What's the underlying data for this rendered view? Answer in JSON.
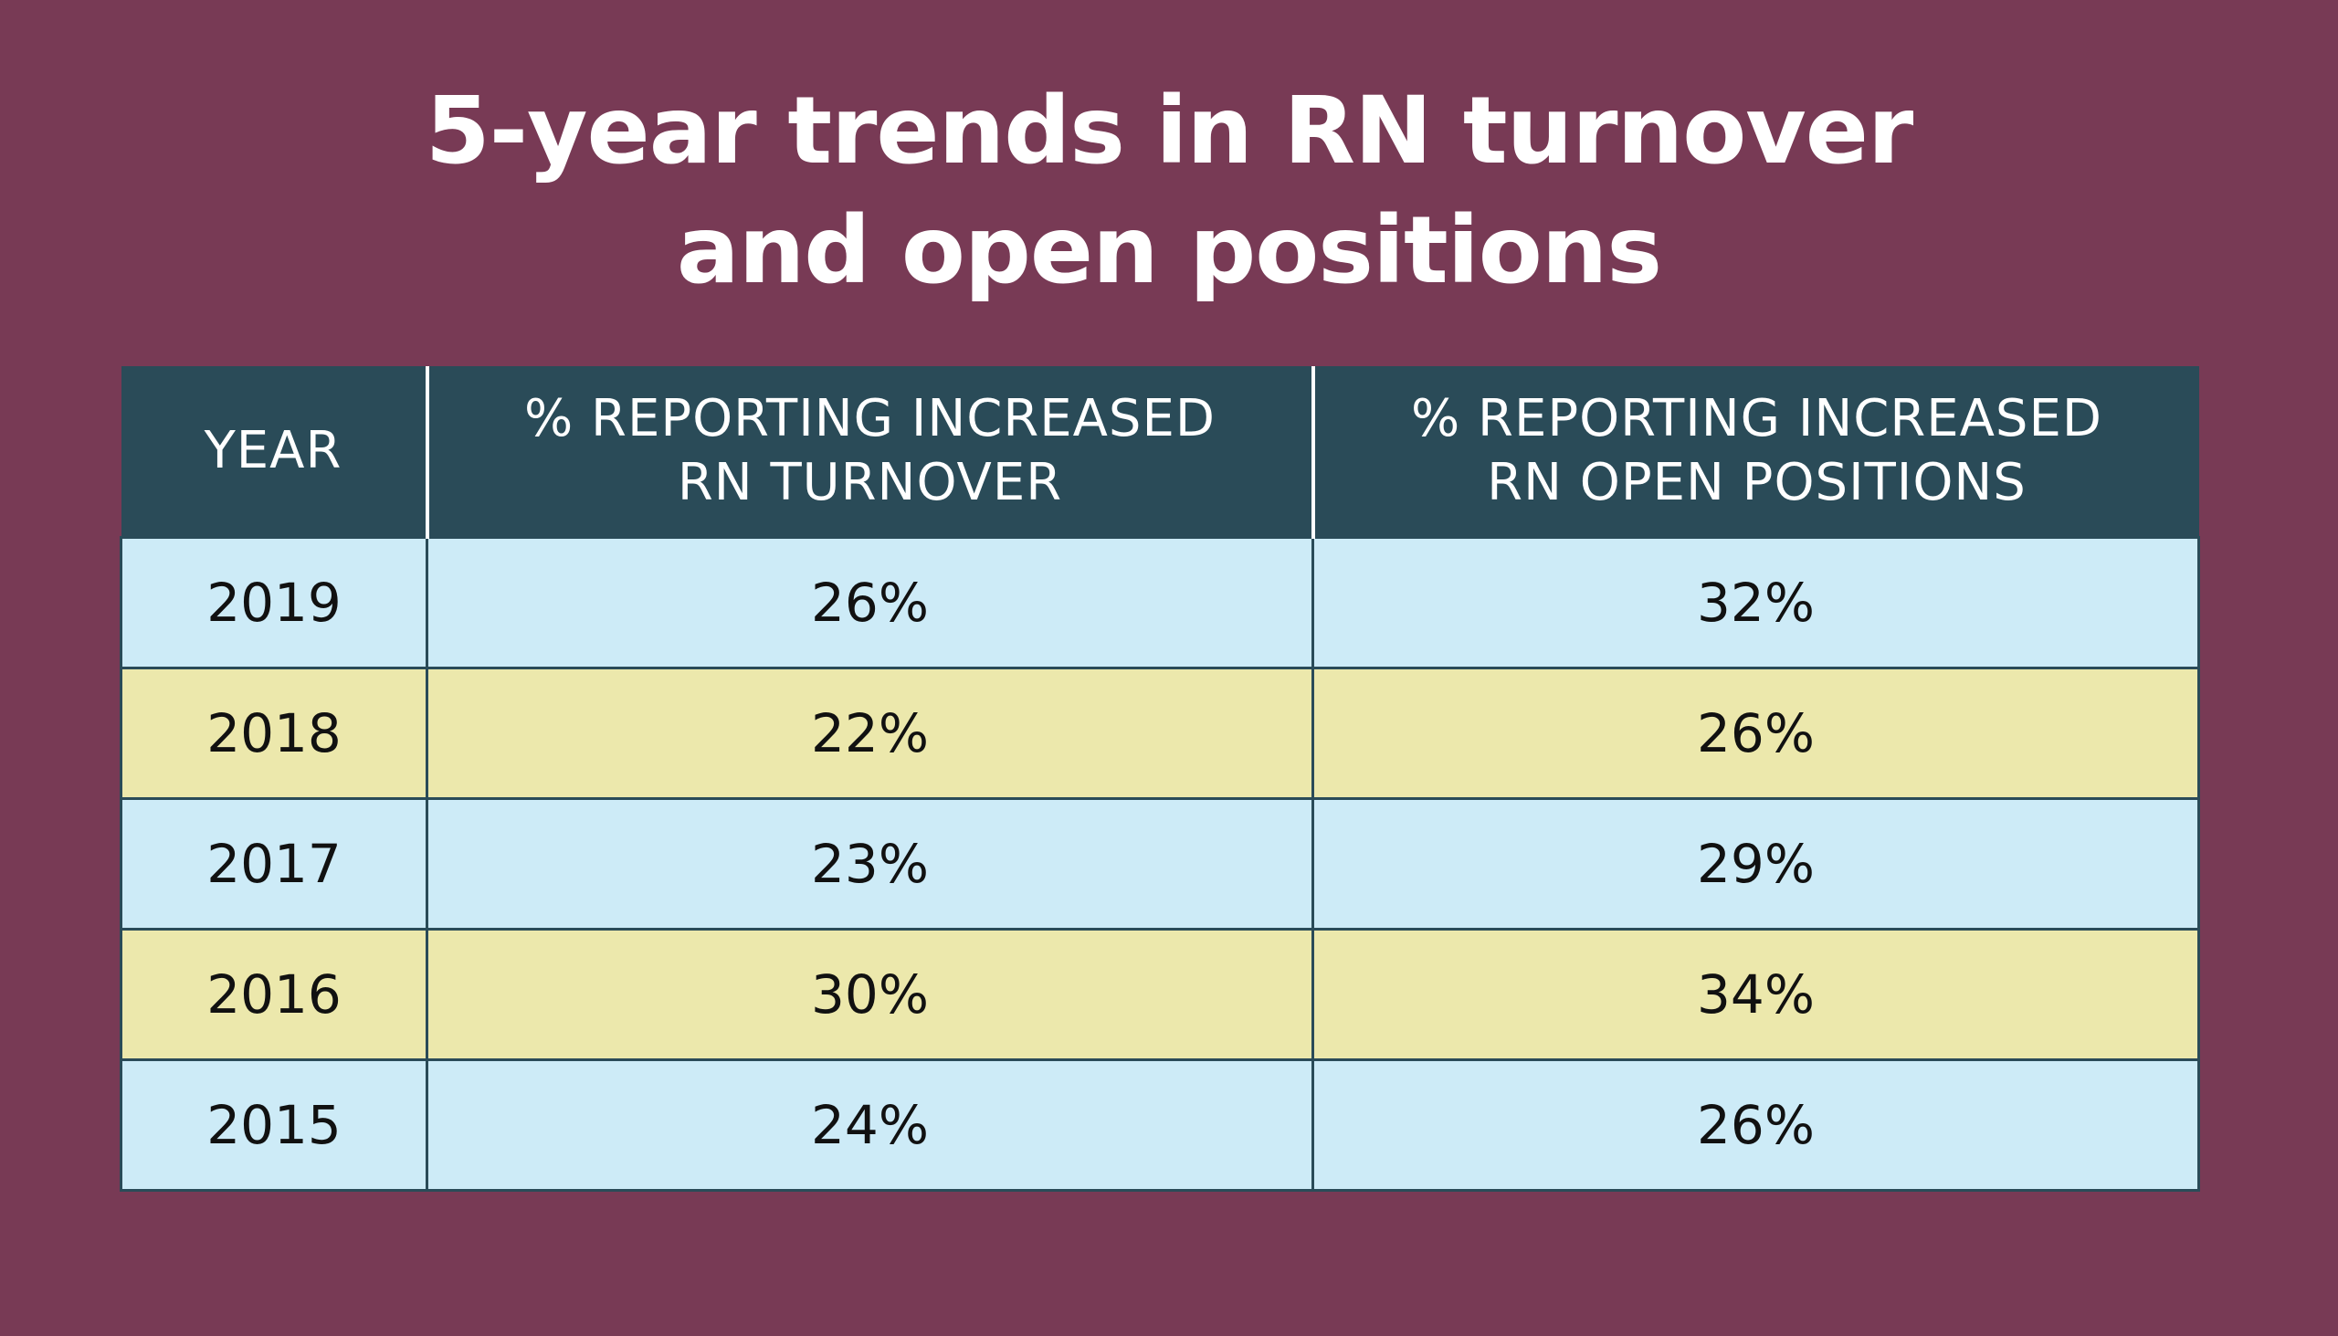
{
  "title": {
    "line1": "5-year trends in RN turnover",
    "line2": "and open positions"
  },
  "colors": {
    "background": "#783a55",
    "header": "#2a4b58",
    "row_blue": "#cdebf7",
    "row_yellow": "#ece8ac"
  },
  "table": {
    "headers": [
      {
        "line1": "YEAR",
        "line2": ""
      },
      {
        "line1": "% REPORTING INCREASED",
        "line2": "RN TURNOVER"
      },
      {
        "line1": "% REPORTING INCREASED",
        "line2": "RN OPEN POSITIONS"
      }
    ],
    "rows": [
      [
        "2019",
        "26%",
        "32%"
      ],
      [
        "2018",
        "22%",
        "26%"
      ],
      [
        "2017",
        "23%",
        "29%"
      ],
      [
        "2016",
        "30%",
        "34%"
      ],
      [
        "2015",
        "24%",
        "26%"
      ]
    ]
  },
  "chart_data": {
    "type": "table",
    "title": "5-year trends in RN turnover and open positions",
    "columns": [
      "YEAR",
      "% REPORTING INCREASED RN TURNOVER",
      "% REPORTING INCREASED RN OPEN POSITIONS"
    ],
    "categories": [
      "2019",
      "2018",
      "2017",
      "2016",
      "2015"
    ],
    "series": [
      {
        "name": "% REPORTING INCREASED RN TURNOVER",
        "values": [
          26,
          22,
          23,
          30,
          24
        ]
      },
      {
        "name": "% REPORTING INCREASED RN OPEN POSITIONS",
        "values": [
          32,
          26,
          29,
          34,
          26
        ]
      }
    ]
  }
}
